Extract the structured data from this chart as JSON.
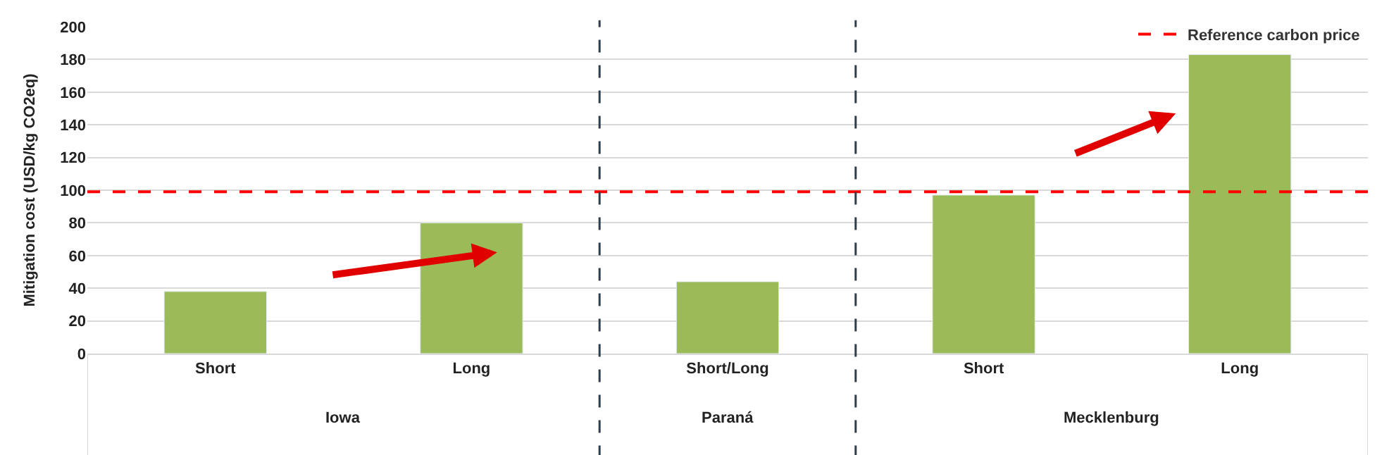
{
  "chart_data": {
    "type": "bar",
    "ylabel": "Mitigation cost (USD/kg CO2eq)",
    "categories": [
      "Short",
      "Long",
      "Short/Long",
      "Short",
      "Long"
    ],
    "values": [
      38,
      80,
      44,
      97,
      183
    ],
    "color": "#9bbb59",
    "ylim": [
      0,
      200
    ],
    "yticks": [
      0,
      20,
      40,
      60,
      80,
      100,
      120,
      140,
      160,
      180,
      200
    ],
    "grid": "y",
    "legend": "top right",
    "ref_lines": [
      {
        "axis": "y",
        "value": 99,
        "label": "Reference carbon price",
        "color": "#ff0000",
        "line_style": "dashed"
      }
    ],
    "annotations": [
      "Iowa",
      "Paraná",
      "Mecklenburg"
    ]
  }
}
